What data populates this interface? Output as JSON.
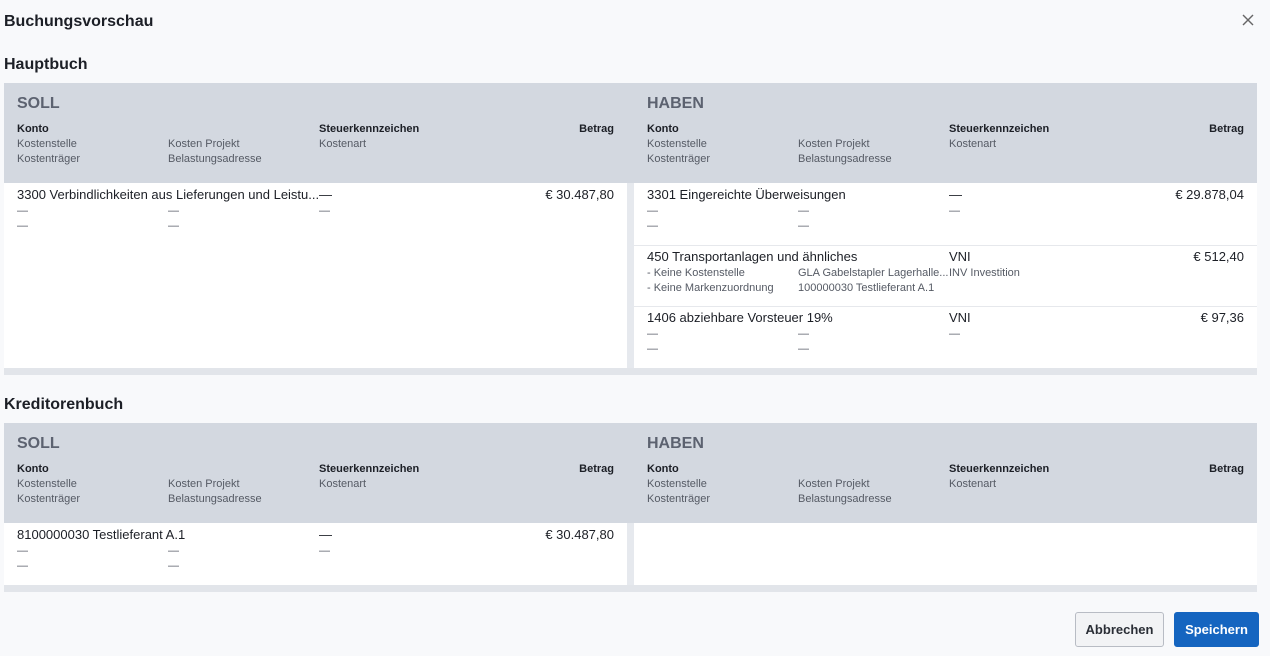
{
  "title": "Buchungsvorschau",
  "sections": [
    {
      "title": "Hauptbuch",
      "soll": {
        "label": "SOLL",
        "header": {
          "konto": "Konto",
          "steuerkennzeichen": "Steuerkennzeichen",
          "betrag": "Betrag",
          "kostenstelle": "Kostenstelle",
          "kosten_projekt": "Kosten Projekt",
          "kostenart": "Kostenart",
          "kostentraeger": "Kostenträger",
          "belastungsadresse": "Belastungsadresse"
        },
        "entries": [
          {
            "konto": "3300 Verbindlichkeiten aus Lieferungen und Leistu...",
            "steuerkennzeichen": "—",
            "betrag": "€ 30.487,80",
            "kostenstelle": "—",
            "kosten_projekt": "—",
            "kostenart": "—",
            "kostentraeger": "—",
            "belastungsadresse": "—"
          }
        ]
      },
      "haben": {
        "label": "HABEN",
        "header": {
          "konto": "Konto",
          "steuerkennzeichen": "Steuerkennzeichen",
          "betrag": "Betrag",
          "kostenstelle": "Kostenstelle",
          "kosten_projekt": "Kosten Projekt",
          "kostenart": "Kostenart",
          "kostentraeger": "Kostenträger",
          "belastungsadresse": "Belastungsadresse"
        },
        "entries": [
          {
            "konto": "3301 Eingereichte Überweisungen",
            "steuerkennzeichen": "—",
            "betrag": "€ 29.878,04",
            "kostenstelle": "—",
            "kosten_projekt": "—",
            "kostenart": "—",
            "kostentraeger": "—",
            "belastungsadresse": "—"
          },
          {
            "konto": "450 Transportanlagen und ähnliches",
            "steuerkennzeichen": "VNI",
            "betrag": "€ 512,40",
            "kostenstelle": "- Keine Kostenstelle",
            "kosten_projekt": "GLA Gabelstapler Lagerhalle...",
            "kostenart": "INV Investition",
            "kostentraeger": "- Keine Markenzuordnung",
            "belastungsadresse": "100000030 Testlieferant A.1"
          },
          {
            "konto": "1406 abziehbare Vorsteuer 19%",
            "steuerkennzeichen": "VNI",
            "betrag": "€ 97,36",
            "kostenstelle": "—",
            "kosten_projekt": "—",
            "kostenart": "—",
            "kostentraeger": "—",
            "belastungsadresse": "—"
          }
        ]
      }
    },
    {
      "title": "Kreditorenbuch",
      "soll": {
        "label": "SOLL",
        "header": {
          "konto": "Konto",
          "steuerkennzeichen": "Steuerkennzeichen",
          "betrag": "Betrag",
          "kostenstelle": "Kostenstelle",
          "kosten_projekt": "Kosten Projekt",
          "kostenart": "Kostenart",
          "kostentraeger": "Kostenträger",
          "belastungsadresse": "Belastungsadresse"
        },
        "entries": [
          {
            "konto": "8100000030 Testlieferant A.1",
            "steuerkennzeichen": "—",
            "betrag": "€ 30.487,80",
            "kostenstelle": "—",
            "kosten_projekt": "—",
            "kostenart": "—",
            "kostentraeger": "—",
            "belastungsadresse": "—"
          }
        ]
      },
      "haben": {
        "label": "HABEN",
        "header": {
          "konto": "Konto",
          "steuerkennzeichen": "Steuerkennzeichen",
          "betrag": "Betrag",
          "kostenstelle": "Kostenstelle",
          "kosten_projekt": "Kosten Projekt",
          "kostenart": "Kostenart",
          "kostentraeger": "Kostenträger",
          "belastungsadresse": "Belastungsadresse"
        },
        "entries": []
      }
    }
  ],
  "buttons": {
    "cancel": "Abbrechen",
    "save": "Speichern"
  }
}
